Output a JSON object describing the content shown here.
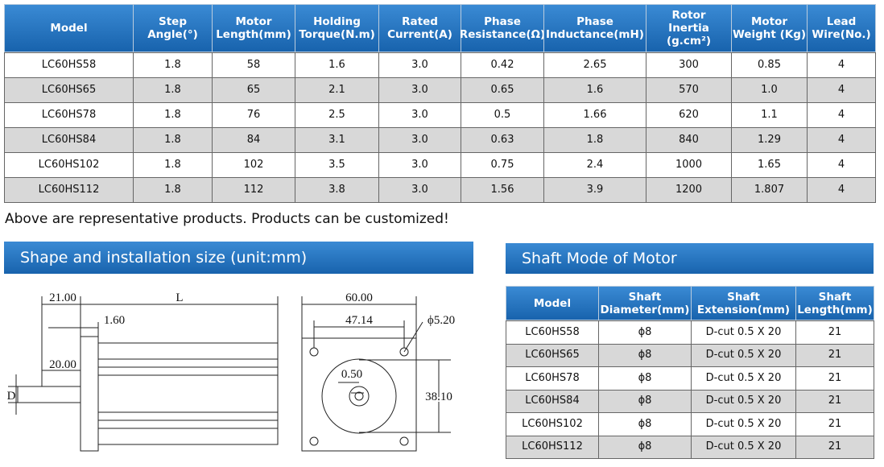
{
  "spec_table": {
    "header": [
      [
        "Model"
      ],
      [
        "Step",
        "Angle(°)"
      ],
      [
        "Motor",
        "Length(mm)"
      ],
      [
        "Holding",
        "Torque(N.m)"
      ],
      [
        "Rated",
        "Current(A)"
      ],
      [
        "Phase",
        "Resistance(Ω)"
      ],
      [
        "Phase",
        "Inductance(mH)"
      ],
      [
        "Rotor",
        "Inertia (g.cm²)"
      ],
      [
        "Motor",
        "Weight (Kg)"
      ],
      [
        "Lead",
        "Wire(No.)"
      ]
    ],
    "rows": [
      [
        "LC60HS58",
        "1.8",
        "58",
        "1.6",
        "3.0",
        "0.42",
        "2.65",
        "300",
        "0.85",
        "4"
      ],
      [
        "LC60HS65",
        "1.8",
        "65",
        "2.1",
        "3.0",
        "0.65",
        "1.6",
        "570",
        "1.0",
        "4"
      ],
      [
        "LC60HS78",
        "1.8",
        "76",
        "2.5",
        "3.0",
        "0.5",
        "1.66",
        "620",
        "1.1",
        "4"
      ],
      [
        "LC60HS84",
        "1.8",
        "84",
        "3.1",
        "3.0",
        "0.63",
        "1.8",
        "840",
        "1.29",
        "4"
      ],
      [
        "LC60HS102",
        "1.8",
        "102",
        "3.5",
        "3.0",
        "0.75",
        "2.4",
        "1000",
        "1.65",
        "4"
      ],
      [
        "LC60HS112",
        "1.8",
        "112",
        "3.8",
        "3.0",
        "1.56",
        "3.9",
        "1200",
        "1.807",
        "4"
      ]
    ]
  },
  "note": "Above are representative products. Products can be customized!",
  "shape_section": {
    "title": "Shape and installation size (unit:mm)",
    "labels": {
      "a": "21.00",
      "b": "L",
      "c": "1.60",
      "d": "20.00",
      "e": "D",
      "f": "60.00",
      "g": "47.14",
      "h": "ϕ5.20",
      "i": "0.50",
      "j": "38.10"
    }
  },
  "shaft_section": {
    "title": "Shaft Mode of Motor",
    "table": {
      "header": [
        [
          "Model"
        ],
        [
          "Shaft",
          "Diameter(mm)"
        ],
        [
          "Shaft",
          "Extension(mm)"
        ],
        [
          "Shaft",
          "Length(mm)"
        ]
      ],
      "rows": [
        [
          "LC60HS58",
          "ϕ8",
          "D-cut 0.5 X 20",
          "21"
        ],
        [
          "LC60HS65",
          "ϕ8",
          "D-cut 0.5 X 20",
          "21"
        ],
        [
          "LC60HS78",
          "ϕ8",
          "D-cut 0.5 X 20",
          "21"
        ],
        [
          "LC60HS84",
          "ϕ8",
          "D-cut 0.5 X 20",
          "21"
        ],
        [
          "LC60HS102",
          "ϕ8",
          "D-cut 0.5 X 20",
          "21"
        ],
        [
          "LC60HS112",
          "ϕ8",
          "D-cut 0.5 X 20",
          "21"
        ]
      ]
    }
  }
}
